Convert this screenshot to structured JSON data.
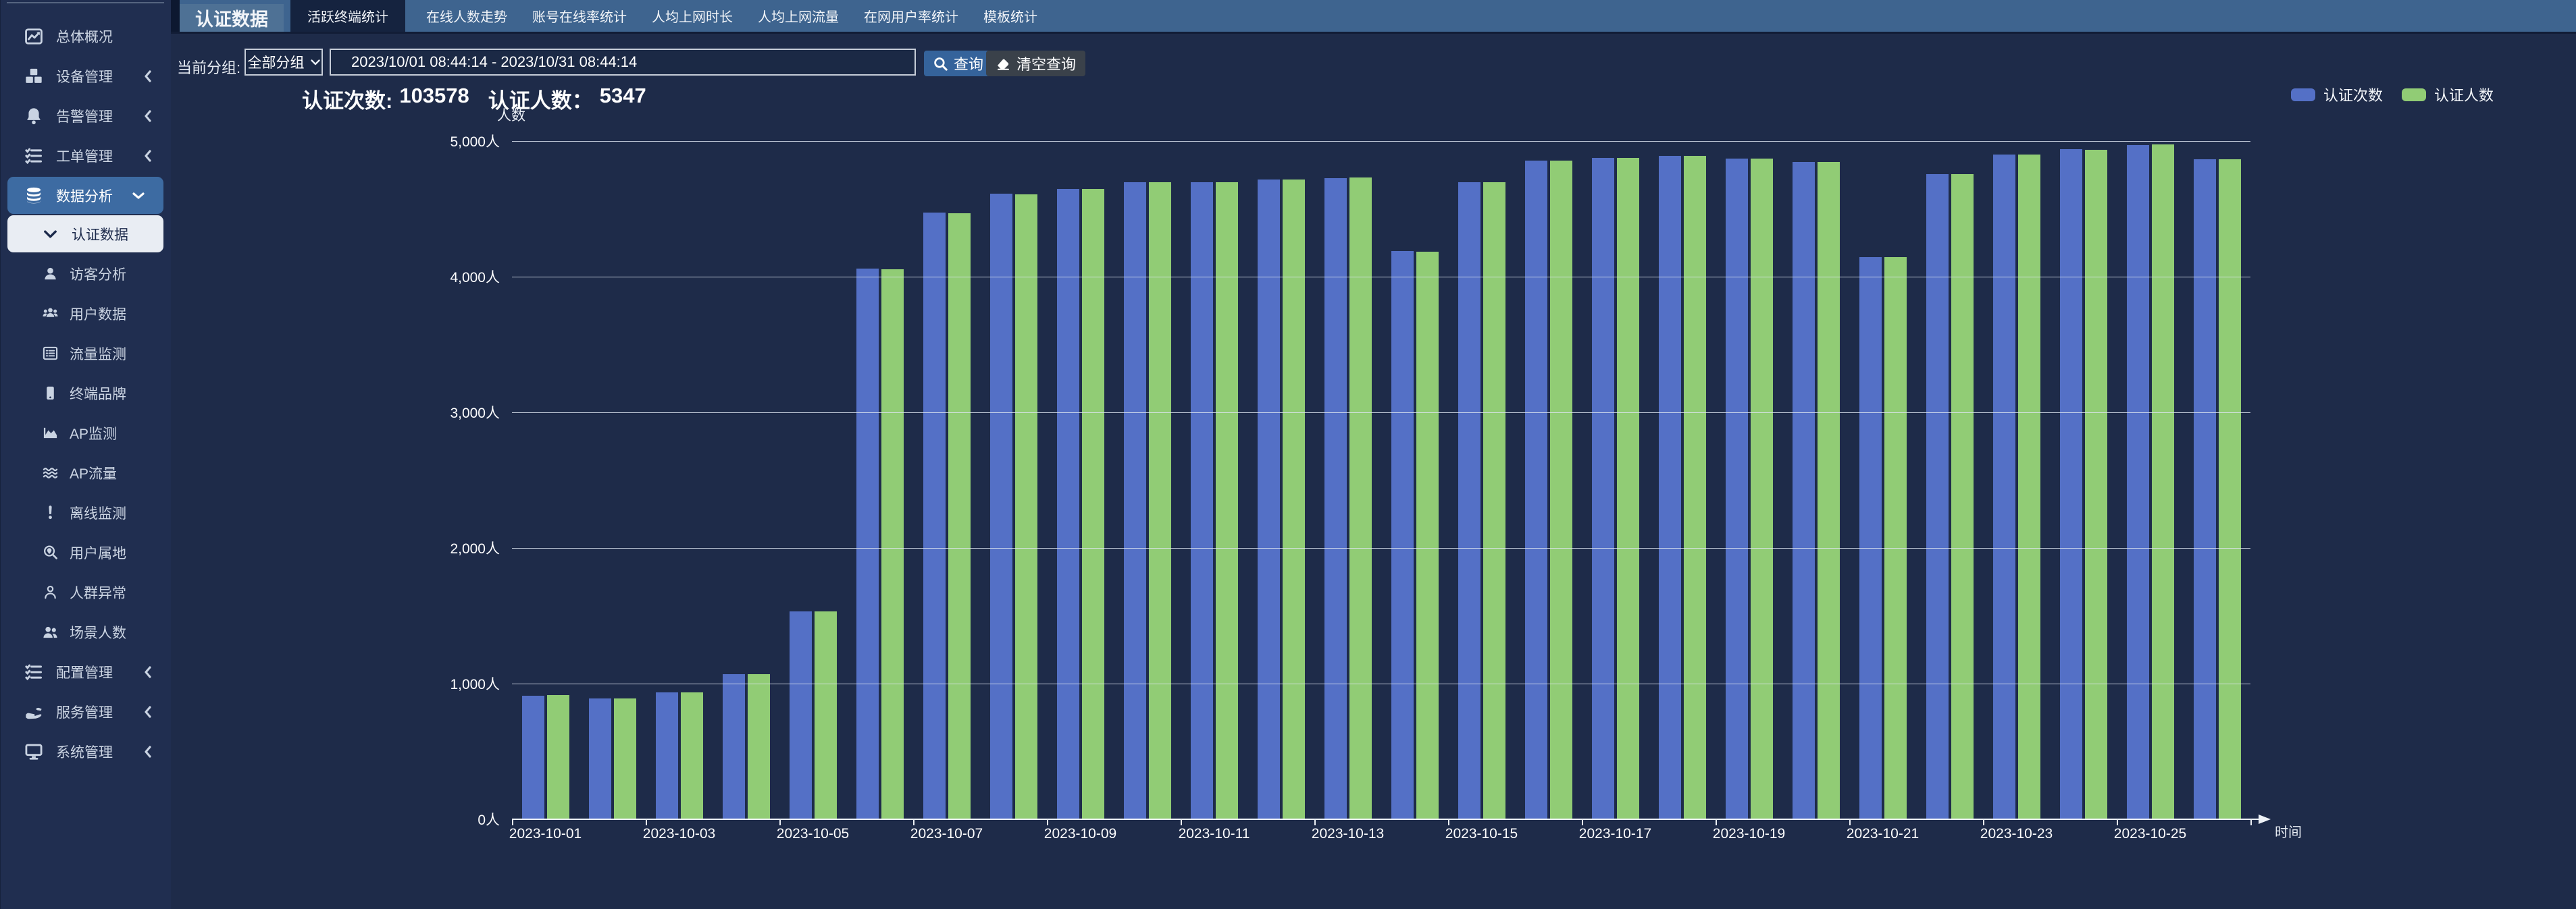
{
  "sidebar": {
    "items": [
      {
        "label": "总体概况",
        "icon": "line-chart"
      },
      {
        "label": "设备管理",
        "icon": "cubes",
        "has_submenu": true
      },
      {
        "label": "告警管理",
        "icon": "bell",
        "has_submenu": true
      },
      {
        "label": "工单管理",
        "icon": "task-list",
        "has_submenu": true
      },
      {
        "label": "数据分析",
        "icon": "database",
        "has_submenu": true,
        "expanded": true,
        "active": true
      },
      {
        "label": "认证数据",
        "icon": "chevron-down",
        "selected": true
      },
      {
        "label": "访客分析",
        "icon": "user"
      },
      {
        "label": "用户数据",
        "icon": "users"
      },
      {
        "label": "流量监测",
        "icon": "list-table"
      },
      {
        "label": "终端品牌",
        "icon": "mobile"
      },
      {
        "label": "AP监测",
        "icon": "area-chart"
      },
      {
        "label": "AP流量",
        "icon": "waves"
      },
      {
        "label": "离线监测",
        "icon": "exclamation"
      },
      {
        "label": "用户属地",
        "icon": "search-location"
      },
      {
        "label": "人群异常",
        "icon": "user-outline"
      },
      {
        "label": "场景人数",
        "icon": "user-group"
      },
      {
        "label": "配置管理",
        "icon": "task-list",
        "has_submenu": true
      },
      {
        "label": "服务管理",
        "icon": "service-hand",
        "has_submenu": true
      },
      {
        "label": "系统管理",
        "icon": "desktop",
        "has_submenu": true
      }
    ]
  },
  "tabs": [
    "认证数据",
    "活跃终端统计",
    "在线人数走势",
    "账号在线率统计",
    "人均上网时长",
    "人均上网流量",
    "在网用户率统计",
    "模板统计"
  ],
  "filter": {
    "group_label": "当前分组:",
    "group_value": "全部分组",
    "date_range": "2023/10/01 08:44:14 - 2023/10/31 08:44:14",
    "query_label": "查询",
    "clear_label": "清空查询"
  },
  "stats": {
    "auth_count_label": "认证次数:",
    "auth_count": "103578",
    "auth_users_label": "认证人数：",
    "auth_users": "5347"
  },
  "legend": [
    {
      "label": "认证次数",
      "color": "#5470c6"
    },
    {
      "label": "认证人数",
      "color": "#91cc75"
    }
  ],
  "chart_data": {
    "type": "bar",
    "title": "",
    "xlabel": "时间",
    "ylabel": "人数",
    "unit": "人",
    "ylim": [
      0,
      5000
    ],
    "ytick_step": 1000,
    "grid": true,
    "legend_position": "top-right",
    "categories": [
      "2023-10-01",
      "2023-10-02",
      "2023-10-03",
      "2023-10-04",
      "2023-10-05",
      "2023-10-06",
      "2023-10-07",
      "2023-10-08",
      "2023-10-09",
      "2023-10-10",
      "2023-10-11",
      "2023-10-12",
      "2023-10-13",
      "2023-10-14",
      "2023-10-15",
      "2023-10-16",
      "2023-10-17",
      "2023-10-18",
      "2023-10-19",
      "2023-10-20",
      "2023-10-21",
      "2023-10-22",
      "2023-10-23",
      "2023-10-24",
      "2023-10-25",
      "2023-10-26"
    ],
    "series": [
      {
        "name": "认证次数",
        "color": "#5470c6",
        "values": [
          910,
          890,
          935,
          1070,
          1530,
          4060,
          4475,
          4610,
          4645,
          4695,
          4695,
          4715,
          4725,
          4190,
          4695,
          4855,
          4875,
          4890,
          4870,
          4845,
          4145,
          4755,
          4900,
          4940,
          4970,
          4865
        ]
      },
      {
        "name": "认证人数",
        "color": "#91cc75",
        "values": [
          915,
          890,
          935,
          1070,
          1530,
          4055,
          4470,
          4605,
          4645,
          4695,
          4695,
          4715,
          4730,
          4185,
          4695,
          4855,
          4875,
          4890,
          4870,
          4845,
          4145,
          4755,
          4900,
          4935,
          4975,
          4865
        ]
      }
    ]
  }
}
